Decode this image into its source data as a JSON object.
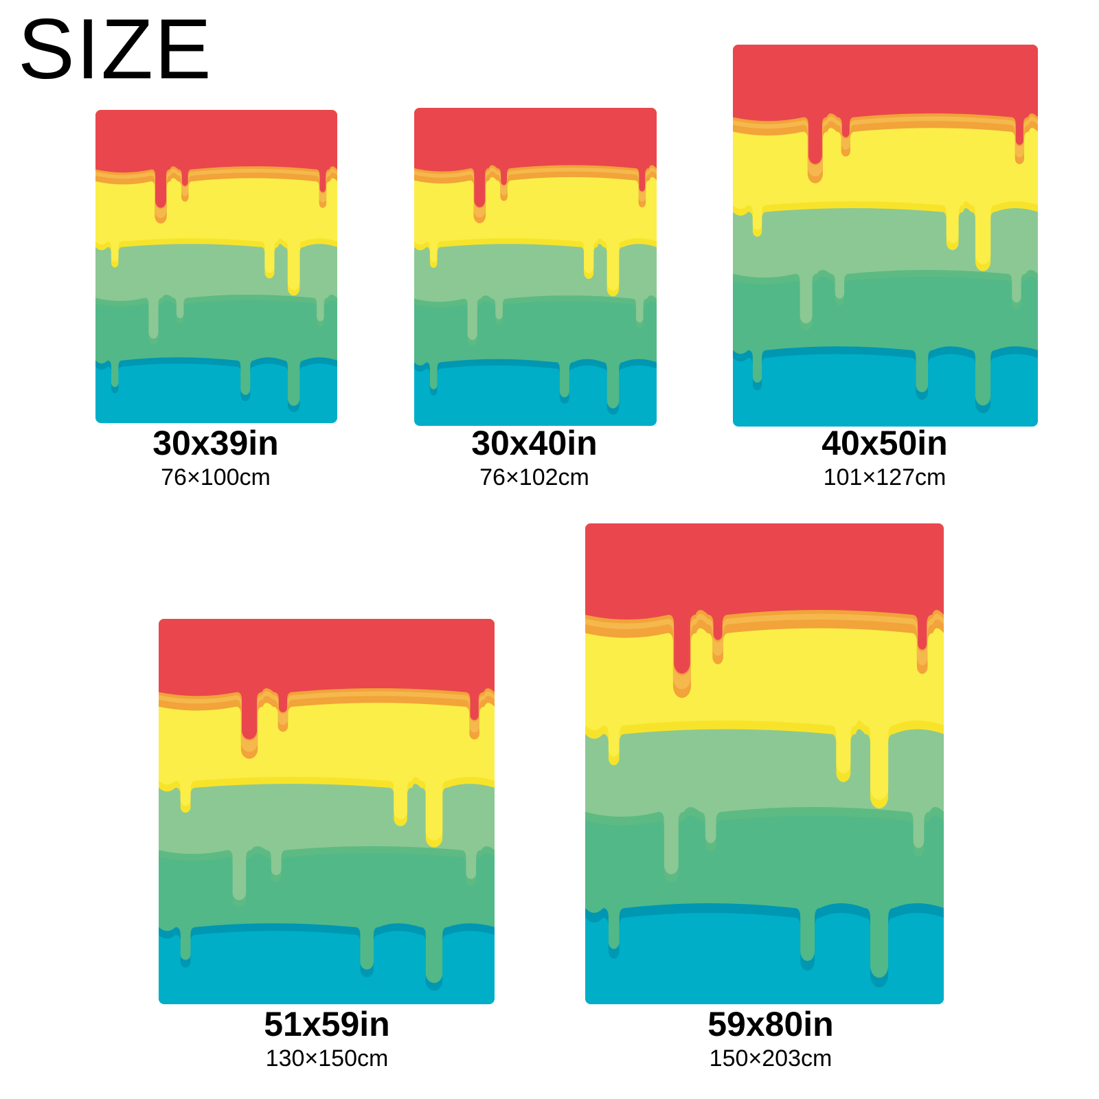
{
  "title": "SIZE",
  "sizes": [
    {
      "inches": "30x39in",
      "cm": "76×100cm"
    },
    {
      "inches": "30x40in",
      "cm": "76×102cm"
    },
    {
      "inches": "40x50in",
      "cm": "101×127cm"
    },
    {
      "inches": "51x59in",
      "cm": "130×150cm"
    },
    {
      "inches": "59x80in",
      "cm": "150×203cm"
    }
  ]
}
